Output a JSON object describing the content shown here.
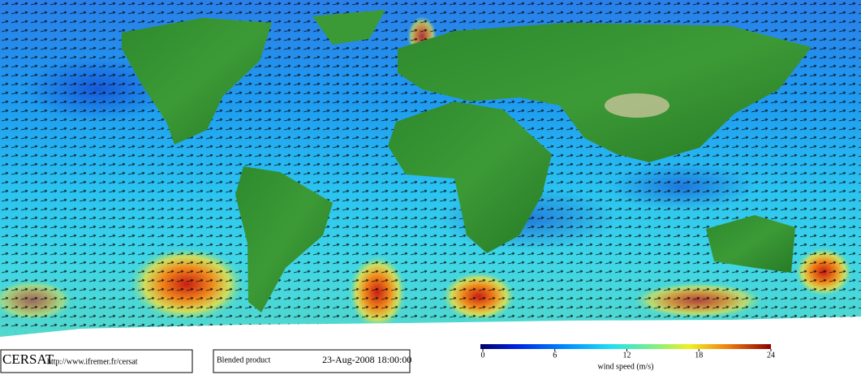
{
  "footer": {
    "logo": "CERSAT",
    "url": "http://www.ifremer.fr/cersat",
    "product": "Blended product",
    "date": "23-Aug-2008 18:00:00"
  },
  "colorbar": {
    "label": "wind speed (m/s)",
    "lim": [
      0,
      24
    ],
    "ticks": [
      0,
      6,
      12,
      18,
      24
    ]
  }
}
